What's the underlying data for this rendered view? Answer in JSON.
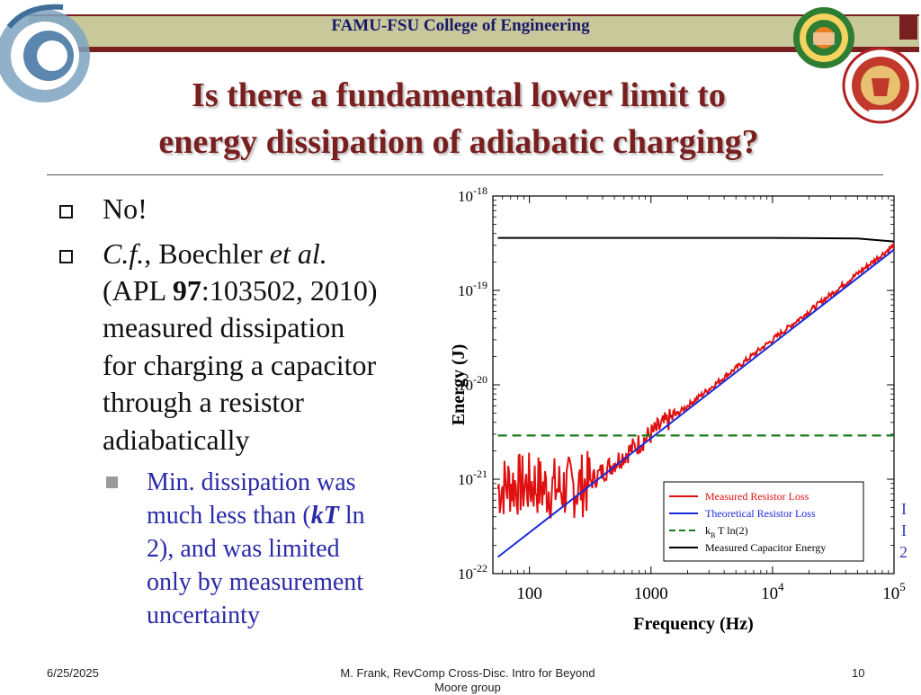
{
  "header": {
    "college_name": "FAMU-FSU College of Engineering"
  },
  "slide": {
    "title_line1": "Is there a fundamental lower limit to",
    "title_line2": "energy dissipation of adiabatic charging?",
    "bullets": [
      {
        "lines": [
          "No!"
        ]
      },
      {
        "cf": "C.f.",
        "comma": ", Boechler ",
        "etal": "et al.",
        "apl_open": "(APL ",
        "vol": "97",
        "apl_rest": ":103502, 2010)",
        "lines_after": [
          "measured dissipation",
          "for charging a capacitor",
          "through a resistor",
          "adiabatically"
        ]
      }
    ],
    "sub_bullet": {
      "line1": "Min. dissipation was",
      "line2_pre": "much less than (",
      "line2_kt": "kT",
      "line2_post": " ln",
      "line3": "2), and was limited",
      "line4": "only by measurement",
      "line5": "uncertainty"
    }
  },
  "footer": {
    "date": "6/25/2025",
    "author": "M. Frank, RevComp Cross-Disc. Intro for Beyond Moore group",
    "page": "10"
  },
  "colors": {
    "maroon": "#7a1f1f",
    "band": "#c8c89a",
    "sub_text": "#2a2aa8",
    "measured_loss": "#e01010",
    "theoretical_loss": "#1a2ad8",
    "kbt": "#1a7a1a",
    "capacitor": "#000000"
  },
  "chart_data": {
    "type": "line",
    "xlabel": "Frequency (Hz)",
    "ylabel": "Energy (J)",
    "x_scale": "log",
    "y_scale": "log",
    "xlim": [
      50,
      100000
    ],
    "ylim": [
      1e-22,
      1e-18
    ],
    "x_ticks": [
      {
        "value": 100,
        "label": "100"
      },
      {
        "value": 1000,
        "label": "1000"
      },
      {
        "value": 10000,
        "base": "10",
        "exp": "4"
      },
      {
        "value": 100000,
        "base": "10",
        "exp": "5"
      }
    ],
    "y_ticks": [
      {
        "value": 1e-22,
        "base": "10",
        "exp": "-22"
      },
      {
        "value": 1e-21,
        "base": "10",
        "exp": "-21"
      },
      {
        "value": 1e-20,
        "base": "10",
        "exp": "-20"
      },
      {
        "value": 1e-19,
        "base": "10",
        "exp": "-19"
      },
      {
        "value": 1e-18,
        "base": "10",
        "exp": "-18"
      }
    ],
    "legend_position": "bottom-right",
    "series": [
      {
        "name": "Measured Resistor Loss",
        "color": "#e01010",
        "style": "noisy",
        "x": [
          55,
          70,
          90,
          110,
          130,
          160,
          200,
          300,
          500,
          1000,
          3000,
          10000,
          30000,
          100000
        ],
        "y": [
          8e-22,
          9e-22,
          8.5e-22,
          9e-22,
          8e-22,
          8e-22,
          8e-22,
          9e-22,
          1.5e-21,
          3e-21,
          9e-21,
          3e-20,
          9e-20,
          3e-19
        ]
      },
      {
        "name": "Theoretical Resistor Loss",
        "color": "#1a2ad8",
        "style": "solid",
        "x": [
          55,
          100000
        ],
        "y": [
          1.5e-22,
          2.7e-19
        ]
      },
      {
        "name_base": "k",
        "name_sub": "B",
        "name_rest": " T ln(2)",
        "color": "#1a7a1a",
        "style": "dashed",
        "x": [
          55,
          100000
        ],
        "y": [
          2.9e-21,
          2.9e-21
        ]
      },
      {
        "name": "Measured Capacitor Energy",
        "color": "#000000",
        "style": "solid",
        "x": [
          55,
          10000,
          50000,
          100000
        ],
        "y": [
          3.6e-19,
          3.6e-19,
          3.55e-19,
          3.3e-19
        ]
      }
    ]
  },
  "edge_fragments": [
    "I",
    "I",
    "2"
  ]
}
